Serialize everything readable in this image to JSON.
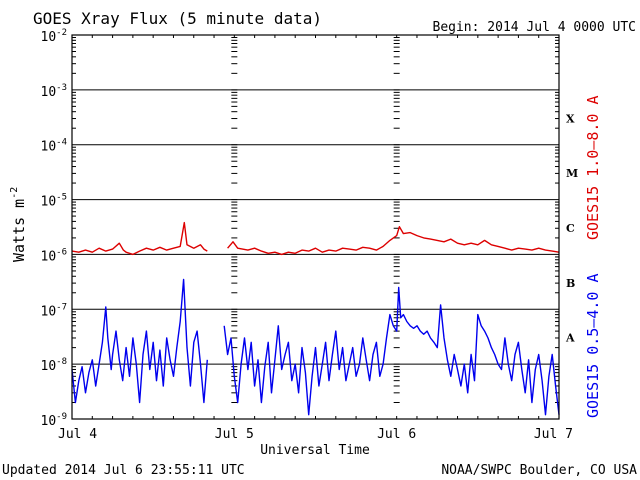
{
  "header": {
    "title": "GOES Xray Flux (5 minute data)",
    "begin": "Begin:  2014 Jul 4 0000 UTC"
  },
  "footer": {
    "updated": "Updated 2014 Jul  6 23:55:11 UTC",
    "source": "NOAA/SWPC Boulder, CO USA"
  },
  "chart_data": {
    "type": "line",
    "title": "GOES Xray Flux (5 minute data)",
    "xlabel": "Universal Time",
    "ylabel": "Watts m",
    "ylabel_superscript": "-2",
    "yscale": "log",
    "ylim": [
      1e-09,
      0.01
    ],
    "xlim": [
      0,
      72
    ],
    "x_unit": "hours since 2014 Jul 4 0000 UTC",
    "x_ticks": [
      {
        "x": 0,
        "label": "Jul 4"
      },
      {
        "x": 24,
        "label": "Jul 5"
      },
      {
        "x": 48,
        "label": "Jul 6"
      },
      {
        "x": 72,
        "label": "Jul 7"
      }
    ],
    "y_ticks": [
      {
        "exp": -9,
        "label": "10",
        "sup": "-9"
      },
      {
        "exp": -8,
        "label": "10",
        "sup": "-8"
      },
      {
        "exp": -7,
        "label": "10",
        "sup": "-7"
      },
      {
        "exp": -6,
        "label": "10",
        "sup": "-6"
      },
      {
        "exp": -5,
        "label": "10",
        "sup": "-5"
      },
      {
        "exp": -4,
        "label": "10",
        "sup": "-4"
      },
      {
        "exp": -3,
        "label": "10",
        "sup": "-3"
      },
      {
        "exp": -2,
        "label": "10",
        "sup": "-2"
      }
    ],
    "flare_classes": [
      {
        "label": "A",
        "exp": -7.5
      },
      {
        "label": "B",
        "exp": -6.5
      },
      {
        "label": "C",
        "exp": -5.5
      },
      {
        "label": "M",
        "exp": -4.5
      },
      {
        "label": "X",
        "exp": -3.5
      }
    ],
    "grid": true,
    "series": [
      {
        "name": "GOES15 1.0–8.0 A",
        "color": "#dd0000",
        "segments": [
          [
            [
              0,
              1.15e-06
            ],
            [
              1,
              1.1e-06
            ],
            [
              2,
              1.2e-06
            ],
            [
              3,
              1.1e-06
            ],
            [
              4,
              1.3e-06
            ],
            [
              5,
              1.15e-06
            ],
            [
              6,
              1.25e-06
            ],
            [
              7,
              1.6e-06
            ],
            [
              7.6,
              1.2e-06
            ],
            [
              8,
              1.1e-06
            ],
            [
              9,
              1e-06
            ],
            [
              10,
              1.15e-06
            ],
            [
              11,
              1.3e-06
            ],
            [
              12,
              1.2e-06
            ],
            [
              13,
              1.35e-06
            ],
            [
              14,
              1.2e-06
            ],
            [
              15,
              1.3e-06
            ],
            [
              16,
              1.4e-06
            ],
            [
              16.6,
              3.8e-06
            ],
            [
              17,
              1.5e-06
            ],
            [
              18,
              1.3e-06
            ],
            [
              19,
              1.5e-06
            ],
            [
              19.5,
              1.25e-06
            ],
            [
              20,
              1.15e-06
            ]
          ],
          [
            [
              23,
              1.3e-06
            ],
            [
              23.8,
              1.7e-06
            ],
            [
              24.5,
              1.3e-06
            ],
            [
              26,
              1.2e-06
            ],
            [
              27,
              1.3e-06
            ],
            [
              28,
              1.15e-06
            ],
            [
              29,
              1.05e-06
            ],
            [
              30,
              1.1e-06
            ],
            [
              31,
              1e-06
            ],
            [
              32,
              1.1e-06
            ],
            [
              33,
              1.05e-06
            ],
            [
              34,
              1.2e-06
            ],
            [
              35,
              1.15e-06
            ],
            [
              36,
              1.3e-06
            ],
            [
              37,
              1.1e-06
            ],
            [
              38,
              1.2e-06
            ],
            [
              39,
              1.15e-06
            ],
            [
              40,
              1.3e-06
            ],
            [
              41,
              1.25e-06
            ],
            [
              42,
              1.2e-06
            ],
            [
              43,
              1.35e-06
            ],
            [
              44,
              1.3e-06
            ],
            [
              45,
              1.2e-06
            ],
            [
              46,
              1.4e-06
            ],
            [
              47,
              1.8e-06
            ],
            [
              48,
              2.2e-06
            ],
            [
              48.4,
              3.2e-06
            ],
            [
              49,
              2.4e-06
            ],
            [
              50,
              2.5e-06
            ],
            [
              51,
              2.2e-06
            ],
            [
              52,
              2e-06
            ],
            [
              53,
              1.9e-06
            ],
            [
              54,
              1.8e-06
            ],
            [
              55,
              1.7e-06
            ],
            [
              56,
              1.9e-06
            ],
            [
              57,
              1.6e-06
            ],
            [
              58,
              1.5e-06
            ],
            [
              59,
              1.6e-06
            ],
            [
              60,
              1.5e-06
            ],
            [
              61,
              1.8e-06
            ],
            [
              62,
              1.5e-06
            ],
            [
              63,
              1.4e-06
            ],
            [
              64,
              1.3e-06
            ],
            [
              65,
              1.2e-06
            ],
            [
              66,
              1.3e-06
            ],
            [
              67,
              1.25e-06
            ],
            [
              68,
              1.2e-06
            ],
            [
              69,
              1.3e-06
            ],
            [
              70,
              1.2e-06
            ],
            [
              71,
              1.15e-06
            ],
            [
              72,
              1.1e-06
            ]
          ]
        ]
      },
      {
        "name": "GOES15 0.5–4.0 A",
        "color": "#0000ee",
        "segments": [
          [
            [
              0,
              8e-09
            ],
            [
              0.5,
              2e-09
            ],
            [
              1,
              5e-09
            ],
            [
              1.5,
              9e-09
            ],
            [
              2,
              3e-09
            ],
            [
              2.5,
              7e-09
            ],
            [
              3,
              1.2e-08
            ],
            [
              3.5,
              4e-09
            ],
            [
              4,
              1e-08
            ],
            [
              4.5,
              2.5e-08
            ],
            [
              5,
              1.1e-07
            ],
            [
              5.3,
              3e-08
            ],
            [
              5.8,
              8e-09
            ],
            [
              6,
              1.5e-08
            ],
            [
              6.5,
              4e-08
            ],
            [
              7,
              1.2e-08
            ],
            [
              7.5,
              5e-09
            ],
            [
              8,
              2e-08
            ],
            [
              8.5,
              6e-09
            ],
            [
              9,
              3e-08
            ],
            [
              9.5,
              1e-08
            ],
            [
              10,
              2e-09
            ],
            [
              10.5,
              1.5e-08
            ],
            [
              11,
              4e-08
            ],
            [
              11.5,
              8e-09
            ],
            [
              12,
              2.5e-08
            ],
            [
              12.5,
              5e-09
            ],
            [
              13,
              1.8e-08
            ],
            [
              13.5,
              4e-09
            ],
            [
              14,
              3e-08
            ],
            [
              14.5,
              1.2e-08
            ],
            [
              15,
              6e-09
            ],
            [
              15.5,
              2e-08
            ],
            [
              16,
              6e-08
            ],
            [
              16.5,
              3.5e-07
            ],
            [
              17,
              2e-08
            ],
            [
              17.5,
              4e-09
            ],
            [
              18,
              2.5e-08
            ],
            [
              18.5,
              4e-08
            ],
            [
              19,
              1e-08
            ],
            [
              19.5,
              2e-09
            ],
            [
              20,
              1.2e-08
            ]
          ],
          [
            [
              22.5,
              5e-08
            ],
            [
              23,
              1.5e-08
            ],
            [
              23.5,
              3e-08
            ],
            [
              24,
              6e-09
            ],
            [
              24.5,
              2e-09
            ],
            [
              25,
              1e-08
            ],
            [
              25.5,
              3e-08
            ],
            [
              26,
              8e-09
            ],
            [
              26.5,
              2.5e-08
            ],
            [
              27,
              4e-09
            ],
            [
              27.5,
              1.2e-08
            ],
            [
              28,
              2e-09
            ],
            [
              28.5,
              9e-09
            ],
            [
              29,
              2.5e-08
            ],
            [
              29.5,
              3e-09
            ],
            [
              30,
              1.2e-08
            ],
            [
              30.5,
              5e-08
            ],
            [
              31,
              8e-09
            ],
            [
              31.5,
              1.5e-08
            ],
            [
              32,
              2.5e-08
            ],
            [
              32.5,
              5e-09
            ],
            [
              33,
              1e-08
            ],
            [
              33.5,
              3e-09
            ],
            [
              34,
              2e-08
            ],
            [
              34.5,
              7e-09
            ],
            [
              35,
              1.2e-09
            ],
            [
              35.5,
              6e-09
            ],
            [
              36,
              2e-08
            ],
            [
              36.5,
              4e-09
            ],
            [
              37,
              1e-08
            ],
            [
              37.5,
              2.5e-08
            ],
            [
              38,
              5e-09
            ],
            [
              38.5,
              1.5e-08
            ],
            [
              39,
              4e-08
            ],
            [
              39.5,
              8e-09
            ],
            [
              40,
              2e-08
            ],
            [
              40.5,
              5e-09
            ],
            [
              41,
              1e-08
            ],
            [
              41.5,
              2e-08
            ],
            [
              42,
              6e-09
            ],
            [
              42.5,
              1e-08
            ],
            [
              43,
              3e-08
            ],
            [
              43.5,
              1.2e-08
            ],
            [
              44,
              5e-09
            ],
            [
              44.5,
              1.5e-08
            ],
            [
              45,
              2.5e-08
            ],
            [
              45.5,
              6e-09
            ],
            [
              46,
              1e-08
            ],
            [
              46.5,
              3e-08
            ],
            [
              47,
              8e-08
            ],
            [
              47.5,
              5e-08
            ],
            [
              48,
              4e-08
            ],
            [
              48.3,
              2.5e-07
            ],
            [
              48.6,
              7e-08
            ],
            [
              49,
              8e-08
            ],
            [
              49.5,
              6e-08
            ],
            [
              50,
              5e-08
            ],
            [
              50.5,
              4.5e-08
            ],
            [
              51,
              5e-08
            ],
            [
              51.5,
              4e-08
            ],
            [
              52,
              3.5e-08
            ],
            [
              52.5,
              4e-08
            ],
            [
              53,
              3e-08
            ],
            [
              53.5,
              2.5e-08
            ],
            [
              54,
              2e-08
            ],
            [
              54.5,
              1.2e-07
            ],
            [
              55,
              3e-08
            ],
            [
              55.5,
              1.2e-08
            ],
            [
              56,
              6e-09
            ],
            [
              56.5,
              1.5e-08
            ],
            [
              57,
              8e-09
            ],
            [
              57.5,
              4e-09
            ],
            [
              58,
              1e-08
            ],
            [
              58.5,
              3e-09
            ],
            [
              59,
              1.5e-08
            ],
            [
              59.5,
              5e-09
            ],
            [
              60,
              8e-08
            ],
            [
              60.5,
              5e-08
            ],
            [
              61,
              4e-08
            ],
            [
              61.5,
              3e-08
            ],
            [
              62,
              2e-08
            ],
            [
              62.5,
              1.5e-08
            ],
            [
              63,
              1e-08
            ],
            [
              63.5,
              8e-09
            ],
            [
              64,
              3e-08
            ],
            [
              64.5,
              1e-08
            ],
            [
              65,
              5e-09
            ],
            [
              65.5,
              1.5e-08
            ],
            [
              66,
              2.5e-08
            ],
            [
              66.5,
              8e-09
            ],
            [
              67,
              3e-09
            ],
            [
              67.5,
              1.2e-08
            ],
            [
              68,
              2e-09
            ],
            [
              68.5,
              8e-09
            ],
            [
              69,
              1.5e-08
            ],
            [
              69.5,
              5e-09
            ],
            [
              70,
              1.2e-09
            ],
            [
              70.5,
              6e-09
            ],
            [
              71,
              1.5e-08
            ],
            [
              71.5,
              4e-09
            ],
            [
              72,
              1.2e-09
            ]
          ]
        ]
      }
    ]
  }
}
